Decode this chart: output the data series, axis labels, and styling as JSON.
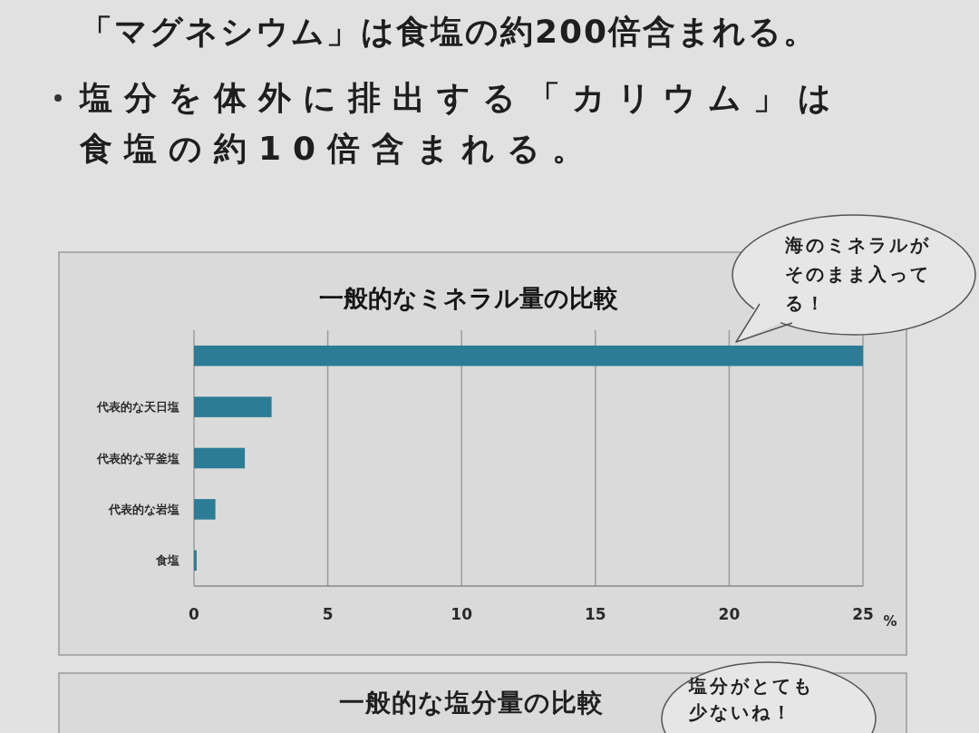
{
  "chart_data": {
    "type": "bar",
    "orientation": "horizontal",
    "title": "一般的なミネラル量の比較",
    "xlabel": "%",
    "categories": [
      null,
      "代表的な天日塩",
      "代表的な平釜塩",
      "代表的な岩塩",
      "食塩"
    ],
    "values": [
      25,
      2.9,
      1.9,
      0.8,
      0.1
    ],
    "color": "#2c7c96",
    "xlim": [
      0,
      25
    ],
    "xticks": [
      0,
      5,
      10,
      15,
      20,
      25
    ],
    "grid": "x",
    "annotations": [
      "「マグネシウム」は食塩の約200倍含まれる。",
      "塩分を体外に排出する「カリウム」は食塩の約10倍含まれる。",
      "海のミネラルがそのまま入ってる！",
      "一般的な塩分量の比較",
      "塩分がとても少ないね！"
    ]
  }
}
